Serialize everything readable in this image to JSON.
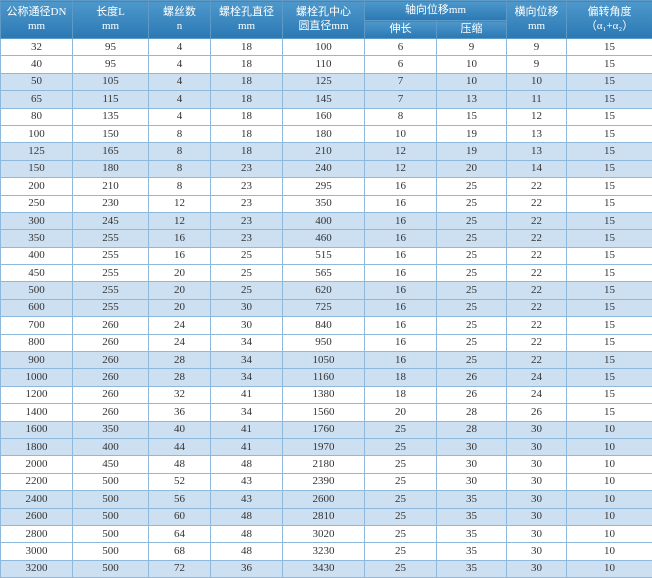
{
  "colors": {
    "header_top": "#4e98cb",
    "header_bottom": "#2a78b4",
    "alt_row_bg": "#cde0f2",
    "border": "#8fb8dd",
    "header_text": "#ffffff",
    "body_text": "#333333"
  },
  "table": {
    "headers": {
      "dn": [
        "公称通径DN",
        "mm"
      ],
      "length": [
        "长度L",
        "mm"
      ],
      "screws": [
        "螺丝数",
        "n"
      ],
      "bolt_hole_dia": [
        "螺栓孔直径",
        "mm"
      ],
      "bolt_circle_dia": [
        "螺栓孔中心",
        "圆直径mm"
      ],
      "axial": "轴向位移mm",
      "axial_extend": "伸长",
      "axial_compress": "压缩",
      "lateral": [
        "横向位移",
        "mm"
      ],
      "angle": [
        "偏转角度",
        "（α₁+α₂）"
      ]
    },
    "rows": [
      [
        32,
        95,
        4,
        18,
        100,
        6,
        9,
        9,
        15
      ],
      [
        40,
        95,
        4,
        18,
        110,
        6,
        10,
        9,
        15
      ],
      [
        50,
        105,
        4,
        18,
        125,
        7,
        10,
        10,
        15
      ],
      [
        65,
        115,
        4,
        18,
        145,
        7,
        13,
        11,
        15
      ],
      [
        80,
        135,
        4,
        18,
        160,
        8,
        15,
        12,
        15
      ],
      [
        100,
        150,
        8,
        18,
        180,
        10,
        19,
        13,
        15
      ],
      [
        125,
        165,
        8,
        18,
        210,
        12,
        19,
        13,
        15
      ],
      [
        150,
        180,
        8,
        23,
        240,
        12,
        20,
        14,
        15
      ],
      [
        200,
        210,
        8,
        23,
        295,
        16,
        25,
        22,
        15
      ],
      [
        250,
        230,
        12,
        23,
        350,
        16,
        25,
        22,
        15
      ],
      [
        300,
        245,
        12,
        23,
        400,
        16,
        25,
        22,
        15
      ],
      [
        350,
        255,
        16,
        23,
        460,
        16,
        25,
        22,
        15
      ],
      [
        400,
        255,
        16,
        25,
        515,
        16,
        25,
        22,
        15
      ],
      [
        450,
        255,
        20,
        25,
        565,
        16,
        25,
        22,
        15
      ],
      [
        500,
        255,
        20,
        25,
        620,
        16,
        25,
        22,
        15
      ],
      [
        600,
        255,
        20,
        30,
        725,
        16,
        25,
        22,
        15
      ],
      [
        700,
        260,
        24,
        30,
        840,
        16,
        25,
        22,
        15
      ],
      [
        800,
        260,
        24,
        34,
        950,
        16,
        25,
        22,
        15
      ],
      [
        900,
        260,
        28,
        34,
        1050,
        16,
        25,
        22,
        15
      ],
      [
        1000,
        260,
        28,
        34,
        1160,
        18,
        26,
        24,
        15
      ],
      [
        1200,
        260,
        32,
        41,
        1380,
        18,
        26,
        24,
        15
      ],
      [
        1400,
        260,
        36,
        34,
        1560,
        20,
        28,
        26,
        15
      ],
      [
        1600,
        350,
        40,
        41,
        1760,
        25,
        28,
        30,
        10
      ],
      [
        1800,
        400,
        44,
        41,
        1970,
        25,
        30,
        30,
        10
      ],
      [
        2000,
        450,
        48,
        48,
        2180,
        25,
        30,
        30,
        10
      ],
      [
        2200,
        500,
        52,
        43,
        2390,
        25,
        30,
        30,
        10
      ],
      [
        2400,
        500,
        56,
        43,
        2600,
        25,
        35,
        30,
        10
      ],
      [
        2600,
        500,
        60,
        48,
        2810,
        25,
        35,
        30,
        10
      ],
      [
        2800,
        500,
        64,
        48,
        3020,
        25,
        35,
        30,
        10
      ],
      [
        3000,
        500,
        68,
        48,
        3230,
        25,
        35,
        30,
        10
      ],
      [
        3200,
        500,
        72,
        36,
        3430,
        25,
        35,
        30,
        10
      ]
    ]
  }
}
